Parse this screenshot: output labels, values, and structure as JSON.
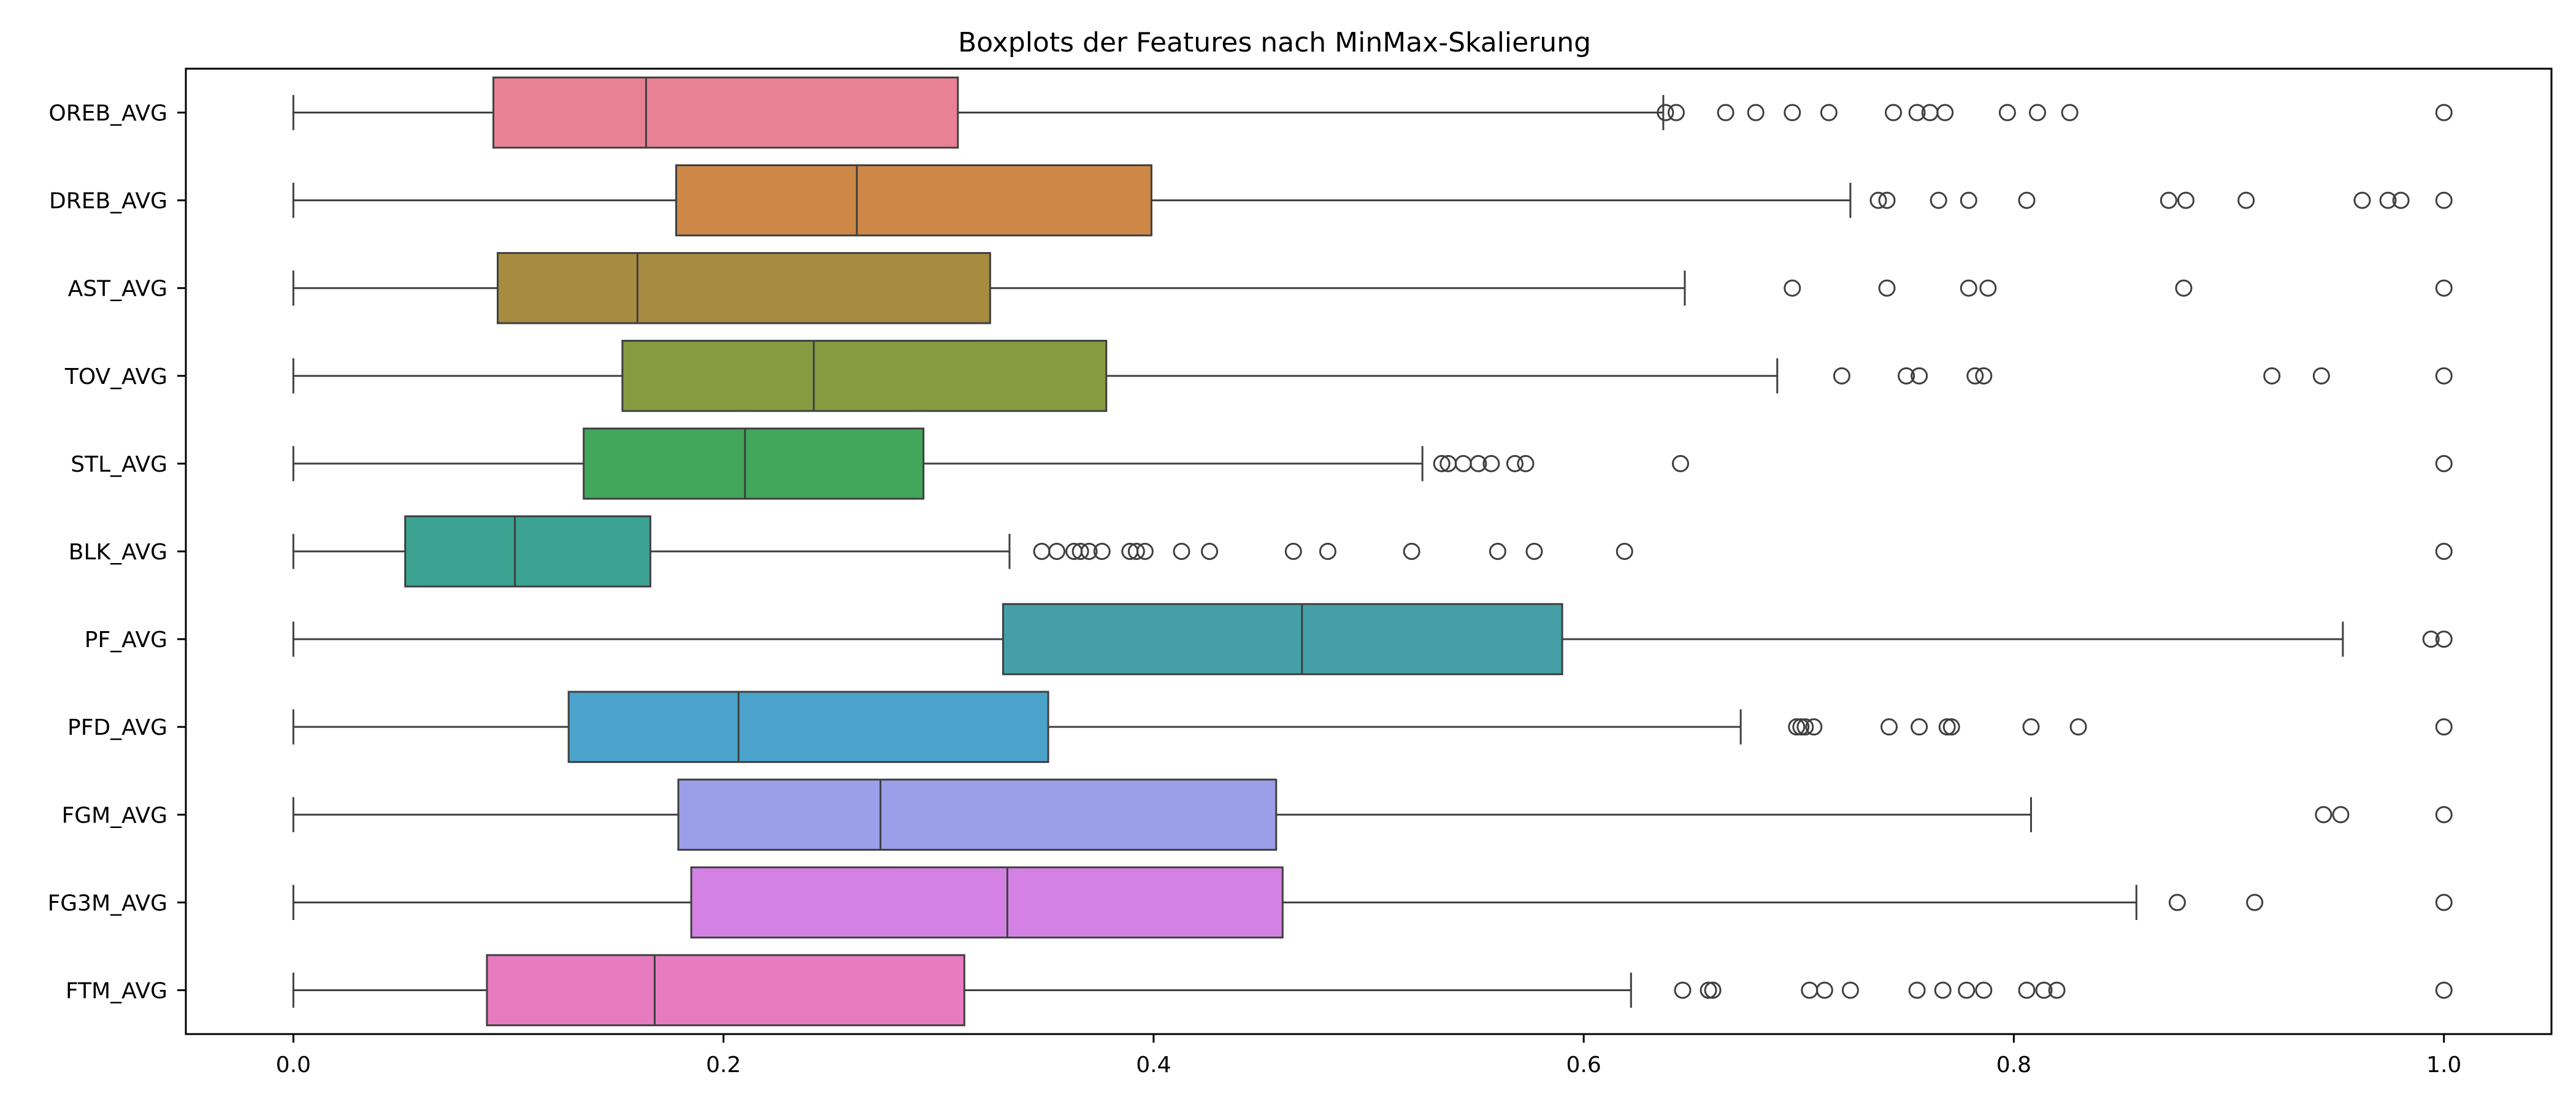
{
  "chart_data": {
    "type": "boxplot",
    "orientation": "horizontal",
    "title": "Boxplots der Features nach MinMax-Skalierung",
    "xlabel": "",
    "ylabel": "",
    "xlim": [
      -0.05,
      1.05
    ],
    "xticks": [
      0.0,
      0.2,
      0.4,
      0.6,
      0.8,
      1.0
    ],
    "xtick_labels": [
      "0.0",
      "0.2",
      "0.4",
      "0.6",
      "0.8",
      "1.0"
    ],
    "grid": false,
    "legend": false,
    "categories": [
      "OREB_AVG",
      "DREB_AVG",
      "AST_AVG",
      "TOV_AVG",
      "STL_AVG",
      "BLK_AVG",
      "PF_AVG",
      "PFD_AVG",
      "FGM_AVG",
      "FG3M_AVG",
      "FTM_AVG"
    ],
    "series": [
      {
        "category": "OREB_AVG",
        "color": "#e88193",
        "whisker_low": 0.0,
        "q1": 0.093,
        "median": 0.164,
        "q3": 0.309,
        "whisker_high": 0.637,
        "outliers": [
          0.638,
          0.643,
          0.666,
          0.68,
          0.697,
          0.714,
          0.744,
          0.755,
          0.761,
          0.768,
          0.797,
          0.811,
          0.826,
          1.0
        ]
      },
      {
        "category": "DREB_AVG",
        "color": "#cd8848",
        "whisker_low": 0.0,
        "q1": 0.178,
        "median": 0.262,
        "q3": 0.399,
        "whisker_high": 0.724,
        "outliers": [
          0.737,
          0.741,
          0.765,
          0.779,
          0.806,
          0.872,
          0.88,
          0.908,
          0.962,
          0.974,
          0.98,
          1.0
        ]
      },
      {
        "category": "AST_AVG",
        "color": "#a58c41",
        "whisker_low": 0.0,
        "q1": 0.095,
        "median": 0.16,
        "q3": 0.324,
        "whisker_high": 0.647,
        "outliers": [
          0.697,
          0.741,
          0.779,
          0.788,
          0.879,
          1.0
        ]
      },
      {
        "category": "TOV_AVG",
        "color": "#879b40",
        "whisker_low": 0.0,
        "q1": 0.153,
        "median": 0.242,
        "q3": 0.378,
        "whisker_high": 0.69,
        "outliers": [
          0.72,
          0.75,
          0.756,
          0.782,
          0.786,
          0.92,
          0.943,
          1.0
        ]
      },
      {
        "category": "STL_AVG",
        "color": "#42a65b",
        "whisker_low": 0.0,
        "q1": 0.135,
        "median": 0.21,
        "q3": 0.293,
        "whisker_high": 0.525,
        "outliers": [
          0.534,
          0.537,
          0.544,
          0.551,
          0.557,
          0.568,
          0.573,
          0.645,
          1.0
        ]
      },
      {
        "category": "BLK_AVG",
        "color": "#3ca392",
        "whisker_low": 0.0,
        "q1": 0.052,
        "median": 0.103,
        "q3": 0.166,
        "whisker_high": 0.333,
        "outliers": [
          0.348,
          0.355,
          0.363,
          0.366,
          0.37,
          0.376,
          0.389,
          0.392,
          0.396,
          0.413,
          0.426,
          0.465,
          0.481,
          0.52,
          0.56,
          0.577,
          0.619,
          1.0
        ]
      },
      {
        "category": "PF_AVG",
        "color": "#44a0a6",
        "whisker_low": 0.0,
        "q1": 0.33,
        "median": 0.469,
        "q3": 0.59,
        "whisker_high": 0.953,
        "outliers": [
          0.994,
          1.0
        ]
      },
      {
        "category": "PFD_AVG",
        "color": "#4ba3cb",
        "whisker_low": 0.0,
        "q1": 0.128,
        "median": 0.207,
        "q3": 0.351,
        "whisker_high": 0.673,
        "outliers": [
          0.699,
          0.701,
          0.703,
          0.707,
          0.742,
          0.756,
          0.769,
          0.771,
          0.808,
          0.83,
          1.0
        ]
      },
      {
        "category": "FGM_AVG",
        "color": "#9b9ee8",
        "whisker_low": 0.0,
        "q1": 0.179,
        "median": 0.273,
        "q3": 0.457,
        "whisker_high": 0.808,
        "outliers": [
          0.944,
          0.952,
          1.0
        ]
      },
      {
        "category": "FG3M_AVG",
        "color": "#d382e3",
        "whisker_low": 0.0,
        "q1": 0.185,
        "median": 0.332,
        "q3": 0.46,
        "whisker_high": 0.857,
        "outliers": [
          0.876,
          0.912,
          1.0
        ]
      },
      {
        "category": "FTM_AVG",
        "color": "#e67bc0",
        "whisker_low": 0.0,
        "q1": 0.09,
        "median": 0.168,
        "q3": 0.312,
        "whisker_high": 0.622,
        "outliers": [
          0.646,
          0.658,
          0.66,
          0.705,
          0.712,
          0.724,
          0.755,
          0.767,
          0.778,
          0.786,
          0.806,
          0.814,
          0.82,
          1.0
        ]
      }
    ]
  }
}
